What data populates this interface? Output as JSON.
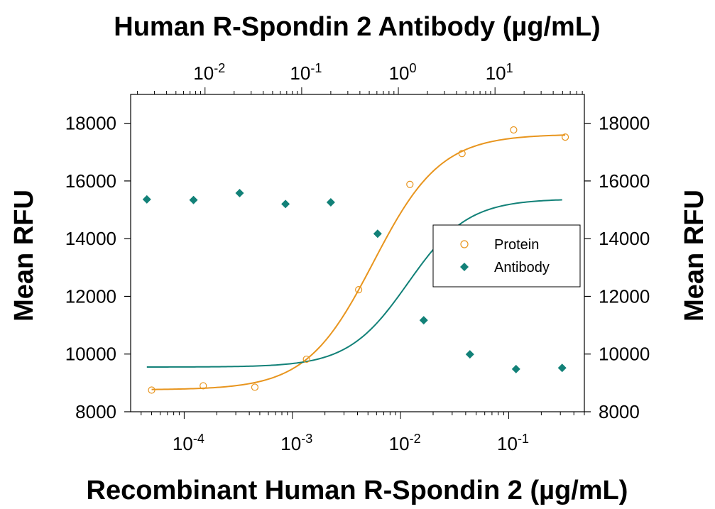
{
  "chart_data": {
    "type": "scatter",
    "title": "Human R-Spondin 2 Antibody (µg/mL)",
    "xlabel": "Recombinant Human R-Spondin 2 (µg/mL)",
    "ylabel_left": "Mean RFU",
    "ylabel_right": "Mean RFU",
    "x_scale": "log",
    "xlim": [
      3.2e-05,
      0.5
    ],
    "x_top_scale": "log",
    "x_top_lim": [
      0.0017,
      84
    ],
    "ylim": [
      8000,
      19000
    ],
    "y_ticks": [
      8000,
      10000,
      12000,
      14000,
      16000,
      18000
    ],
    "x_ticks": [
      {
        "value": 0.0001,
        "base": "10",
        "exp": "-4"
      },
      {
        "value": 0.001,
        "base": "10",
        "exp": "-3"
      },
      {
        "value": 0.01,
        "base": "10",
        "exp": "-2"
      },
      {
        "value": 0.1,
        "base": "10",
        "exp": "-1"
      }
    ],
    "x_top_ticks": [
      {
        "value": 0.01,
        "base": "10",
        "exp": "-2"
      },
      {
        "value": 0.1,
        "base": "10",
        "exp": "-1"
      },
      {
        "value": 1,
        "base": "10",
        "exp": "0"
      },
      {
        "value": 10,
        "base": "10",
        "exp": "1"
      }
    ],
    "grid": false,
    "legend_position": "right",
    "series": [
      {
        "name": "Protein",
        "axis": "bottom",
        "marker": "open-circle",
        "color": "#E8951E",
        "x": [
          5e-05,
          0.00015,
          0.00045,
          0.00135,
          0.0041,
          0.0122,
          0.037,
          0.111,
          0.333
        ],
        "y": [
          8750,
          8900,
          8850,
          9820,
          12230,
          15880,
          16950,
          17770,
          17520
        ],
        "fit": {
          "bottom": 8760,
          "top": 17620,
          "logEC50": -2.25,
          "hill": 1.4
        }
      },
      {
        "name": "Antibody",
        "axis": "top",
        "marker": "filled-diamond",
        "color": "#128178",
        "x": [
          0.0025,
          0.0076,
          0.0228,
          0.068,
          0.2,
          0.61,
          1.83,
          5.5,
          16.5,
          49.5
        ],
        "y": [
          15360,
          15340,
          15580,
          15200,
          15260,
          14170,
          11170,
          9990,
          9480,
          9520
        ],
        "fit": {
          "bottom": 9550,
          "top": 15380,
          "logEC50": 0.1,
          "hill": 1.4
        }
      }
    ]
  }
}
